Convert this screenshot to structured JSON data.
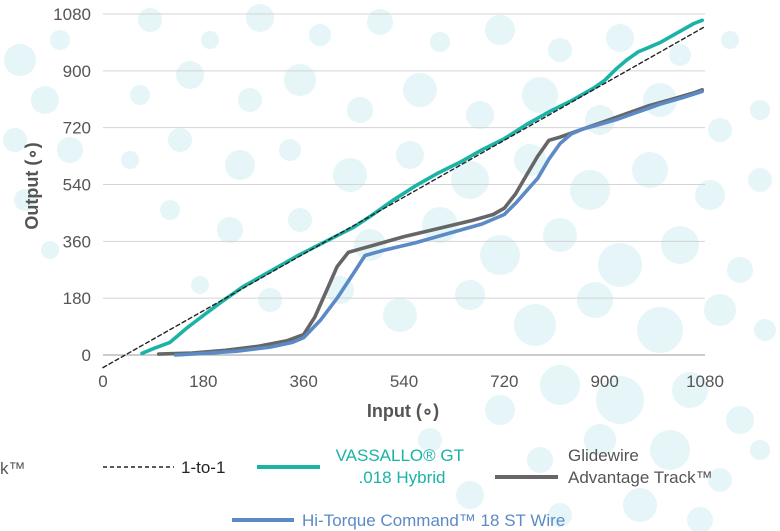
{
  "chart_data": {
    "type": "line",
    "xlabel": "Input (∘)",
    "ylabel": "Output (∘)",
    "xlim": [
      0,
      1080
    ],
    "ylim": [
      0,
      1080
    ],
    "x_ticks": [
      "0",
      "180",
      "360",
      "540",
      "720",
      "900",
      "1080"
    ],
    "y_ticks": [
      "0",
      "180",
      "360",
      "540",
      "720",
      "900",
      "1080"
    ],
    "grid": "horizontal",
    "legend_placement": "bottom",
    "cropped_text_left": "k™",
    "series": [
      {
        "name": "1-to-1",
        "color": "#222222",
        "style": "dashed",
        "x": [
          0,
          1080
        ],
        "y": [
          -40,
          1040
        ]
      },
      {
        "name": "VASSALLO® GT .018 Hybrid",
        "legend_lines": [
          "VASSALLO® GT",
          ".018 Hybrid"
        ],
        "color": "#1ab3a6",
        "style": "solid",
        "x": [
          70,
          90,
          120,
          150,
          180,
          210,
          250,
          300,
          350,
          400,
          450,
          480,
          520,
          560,
          600,
          640,
          680,
          720,
          760,
          800,
          840,
          880,
          900,
          920,
          940,
          960,
          980,
          1000,
          1020,
          1040,
          1060,
          1075
        ],
        "y": [
          5,
          20,
          40,
          85,
          125,
          165,
          215,
          265,
          315,
          360,
          405,
          440,
          490,
          535,
          575,
          610,
          650,
          685,
          730,
          770,
          805,
          845,
          870,
          905,
          935,
          960,
          975,
          990,
          1010,
          1030,
          1050,
          1060
        ]
      },
      {
        "name": "Glidewire Advantage Track™",
        "legend_lines": [
          "Glidewire",
          "Advantage Track™"
        ],
        "color": "#666666",
        "style": "solid",
        "x": [
          100,
          160,
          220,
          280,
          330,
          360,
          380,
          400,
          420,
          440,
          460,
          480,
          540,
          600,
          660,
          700,
          720,
          740,
          760,
          780,
          800,
          820,
          860,
          900,
          940,
          980,
          1020,
          1060,
          1075
        ],
        "y": [
          3,
          6,
          15,
          28,
          45,
          65,
          120,
          200,
          280,
          325,
          335,
          345,
          375,
          400,
          425,
          445,
          465,
          510,
          570,
          630,
          680,
          690,
          715,
          740,
          765,
          790,
          810,
          830,
          840
        ]
      },
      {
        "name": "Hi-Torque Command™ 18 ST Wire",
        "color": "#5b8ac6",
        "style": "solid",
        "x": [
          130,
          180,
          240,
          300,
          340,
          360,
          390,
          420,
          450,
          470,
          500,
          560,
          620,
          680,
          720,
          740,
          760,
          780,
          800,
          820,
          840,
          860,
          880,
          920,
          960,
          1000,
          1040,
          1075
        ],
        "y": [
          0,
          5,
          12,
          25,
          40,
          55,
          110,
          180,
          260,
          315,
          330,
          355,
          385,
          415,
          445,
          480,
          520,
          560,
          620,
          670,
          700,
          715,
          725,
          745,
          770,
          795,
          815,
          835
        ]
      }
    ]
  }
}
